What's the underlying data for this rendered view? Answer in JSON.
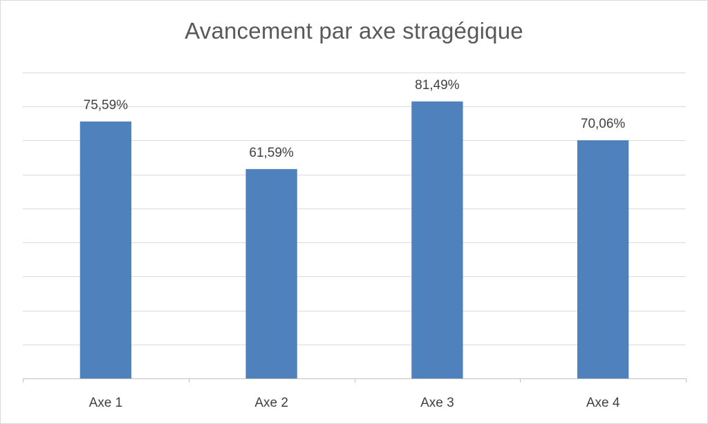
{
  "chart_data": {
    "type": "bar",
    "title": "Avancement par axe stragégique",
    "categories": [
      "Axe 1",
      "Axe 2",
      "Axe 3",
      "Axe 4"
    ],
    "values": [
      75.59,
      61.59,
      81.49,
      70.06
    ],
    "data_labels": [
      "75,59%",
      "61,59%",
      "81,49%",
      "70,06%"
    ],
    "ylim": [
      0,
      90
    ],
    "y_gridline_step": 10,
    "grid": true,
    "y_tick_labels_visible": false,
    "legend": "none",
    "bar_color": "#4f81bd"
  }
}
